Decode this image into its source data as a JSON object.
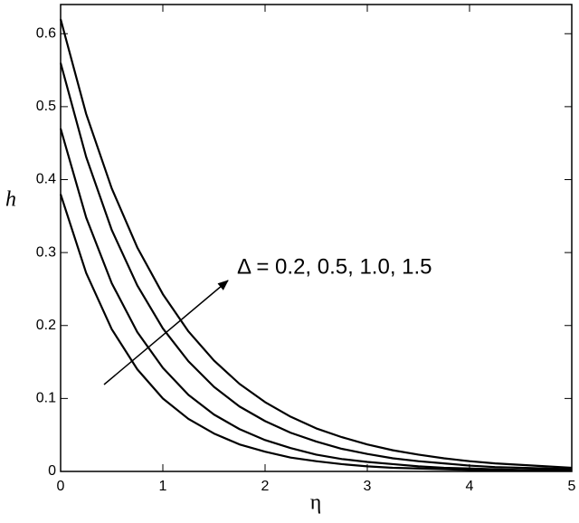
{
  "chart_data": {
    "type": "line",
    "x_label": "η",
    "y_label": "h",
    "annotation": "Δ = 0.2, 0.5, 1.0, 1.5",
    "x": [
      0,
      0.25,
      0.5,
      0.75,
      1,
      1.25,
      1.5,
      1.75,
      2,
      2.25,
      2.5,
      2.75,
      3,
      3.25,
      3.5,
      3.75,
      4,
      4.25,
      4.5,
      4.75,
      5
    ],
    "series": [
      {
        "color": "#000000",
        "values": [
          0.38,
          0.272,
          0.195,
          0.14,
          0.1,
          0.072,
          0.052,
          0.037,
          0.027,
          0.019,
          0.014,
          0.01,
          0.007,
          0.005,
          0.004,
          0.003,
          0.002,
          0.001,
          0.001,
          0.001,
          0.001
        ]
      },
      {
        "color": "#000000",
        "values": [
          0.47,
          0.348,
          0.258,
          0.191,
          0.142,
          0.105,
          0.078,
          0.058,
          0.043,
          0.032,
          0.023,
          0.017,
          0.013,
          0.01,
          0.007,
          0.005,
          0.004,
          0.003,
          0.002,
          0.002,
          0.001
        ]
      },
      {
        "color": "#000000",
        "values": [
          0.56,
          0.431,
          0.331,
          0.255,
          0.196,
          0.151,
          0.116,
          0.089,
          0.069,
          0.053,
          0.041,
          0.031,
          0.024,
          0.018,
          0.014,
          0.011,
          0.008,
          0.006,
          0.005,
          0.004,
          0.003
        ]
      },
      {
        "color": "#000000",
        "values": [
          0.62,
          0.49,
          0.388,
          0.307,
          0.243,
          0.192,
          0.152,
          0.12,
          0.095,
          0.075,
          0.059,
          0.047,
          0.037,
          0.029,
          0.023,
          0.018,
          0.014,
          0.011,
          0.009,
          0.007,
          0.005
        ]
      }
    ],
    "xlim": [
      0,
      5
    ],
    "xticks": [
      0,
      1,
      2,
      3,
      4,
      5
    ],
    "ylim": [
      0,
      0.64
    ],
    "yticks": [
      0,
      0.1,
      0.2,
      0.3,
      0.4,
      0.5,
      0.6
    ],
    "grid": false
  }
}
